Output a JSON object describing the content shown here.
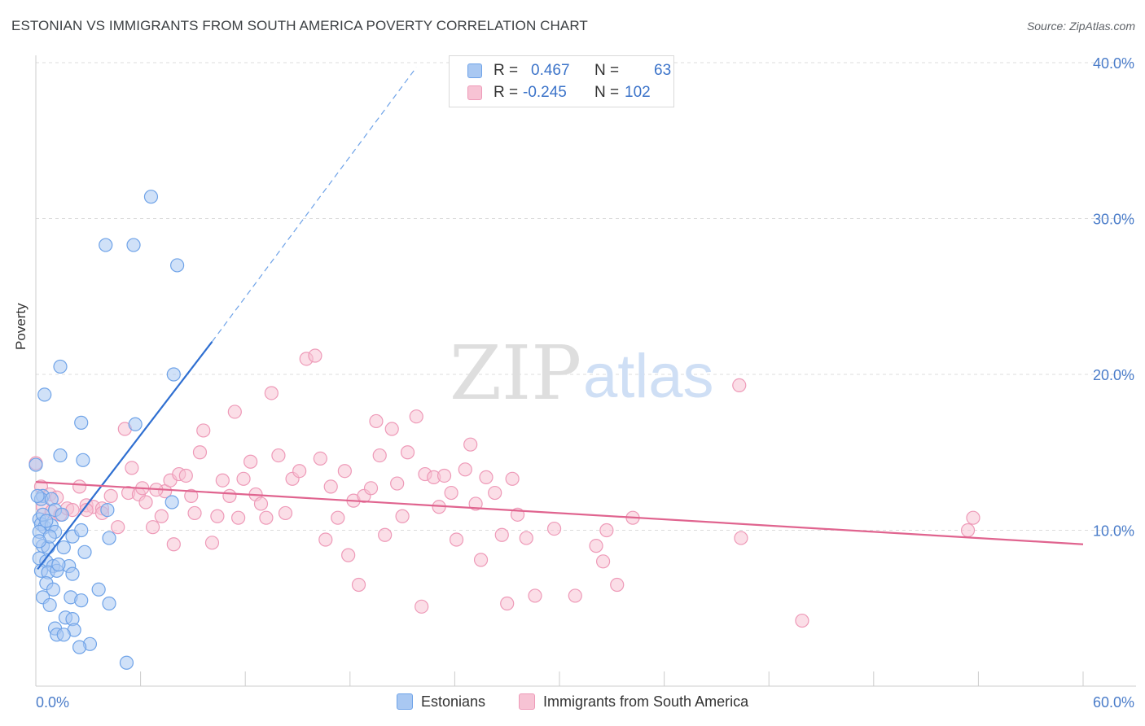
{
  "title": "ESTONIAN VS IMMIGRANTS FROM SOUTH AMERICA POVERTY CORRELATION CHART",
  "source": "Source: ZipAtlas.com",
  "watermark": {
    "zip": "ZIP",
    "atlas": "atlas"
  },
  "legend": {
    "r_label": "R =",
    "n_label": "N =",
    "rows": [
      {
        "r": "0.467",
        "n": "63",
        "color": "#6fa3e8"
      },
      {
        "r": "-0.245",
        "n": "102",
        "color": "#f0a0bc"
      }
    ]
  },
  "bottom_legend": [
    "Estonians",
    "Immigrants from South America"
  ],
  "colors": {
    "blue_fill": "#a9c8f2",
    "blue_stroke": "#6fa3e8",
    "blue_line": "#2f6fd1",
    "pink_fill": "#f7c3d4",
    "pink_stroke": "#ee9ab8",
    "pink_line": "#e0648f",
    "tick_label": "#4a7cc9",
    "grid": "#dcdcdc"
  },
  "chart_data": {
    "type": "scatter",
    "title": "ESTONIAN VS IMMIGRANTS FROM SOUTH AMERICA POVERTY CORRELATION CHART",
    "xlabel": "",
    "ylabel": "Poverty",
    "xlim": [
      0,
      60
    ],
    "ylim": [
      0,
      40
    ],
    "x_tick_labels": [
      "0.0%",
      "60.0%"
    ],
    "y_ticks": [
      10,
      20,
      30,
      40
    ],
    "y_tick_labels": [
      "10.0%",
      "20.0%",
      "30.0%",
      "40.0%"
    ],
    "grid": true,
    "legend_position": "top-center",
    "series": [
      {
        "name": "Estonians",
        "r": 0.467,
        "n": 63,
        "trend": {
          "x0": 0.1,
          "y0": 7.5,
          "x1": 10.1,
          "y1": 22.1,
          "dashed_to_x": 21.8,
          "dashed_to_y": 39.7
        },
        "points": [
          [
            6.6,
            31.4
          ],
          [
            4.0,
            28.3
          ],
          [
            5.6,
            28.3
          ],
          [
            8.1,
            27.0
          ],
          [
            1.4,
            20.5
          ],
          [
            7.9,
            20.0
          ],
          [
            0.5,
            18.7
          ],
          [
            2.6,
            16.9
          ],
          [
            5.7,
            16.8
          ],
          [
            1.4,
            14.8
          ],
          [
            2.7,
            14.5
          ],
          [
            0.0,
            14.2
          ],
          [
            0.4,
            12.2
          ],
          [
            0.3,
            12.0
          ],
          [
            0.9,
            12.0
          ],
          [
            1.1,
            11.3
          ],
          [
            1.5,
            11.0
          ],
          [
            4.1,
            11.3
          ],
          [
            7.8,
            11.8
          ],
          [
            0.2,
            10.7
          ],
          [
            0.3,
            10.4
          ],
          [
            0.5,
            10.2
          ],
          [
            0.9,
            10.3
          ],
          [
            0.2,
            9.9
          ],
          [
            1.1,
            9.9
          ],
          [
            2.1,
            9.6
          ],
          [
            2.6,
            10.0
          ],
          [
            4.2,
            9.5
          ],
          [
            0.4,
            9.0
          ],
          [
            0.7,
            8.9
          ],
          [
            1.6,
            8.9
          ],
          [
            2.8,
            8.6
          ],
          [
            0.2,
            8.2
          ],
          [
            0.6,
            8.0
          ],
          [
            1.0,
            7.7
          ],
          [
            1.9,
            7.7
          ],
          [
            0.3,
            7.4
          ],
          [
            0.7,
            7.3
          ],
          [
            1.2,
            7.4
          ],
          [
            2.1,
            7.2
          ],
          [
            0.6,
            6.6
          ],
          [
            1.0,
            6.2
          ],
          [
            3.6,
            6.2
          ],
          [
            0.4,
            5.7
          ],
          [
            0.8,
            5.2
          ],
          [
            2.0,
            5.7
          ],
          [
            2.6,
            5.5
          ],
          [
            4.2,
            5.3
          ],
          [
            1.7,
            4.4
          ],
          [
            2.1,
            4.3
          ],
          [
            1.1,
            3.7
          ],
          [
            2.2,
            3.6
          ],
          [
            1.2,
            3.3
          ],
          [
            1.6,
            3.3
          ],
          [
            3.1,
            2.7
          ],
          [
            2.5,
            2.5
          ],
          [
            5.2,
            1.5
          ],
          [
            0.1,
            12.2
          ],
          [
            0.4,
            11.0
          ],
          [
            0.8,
            9.6
          ],
          [
            1.3,
            7.8
          ],
          [
            0.2,
            9.3
          ],
          [
            0.6,
            10.6
          ]
        ]
      },
      {
        "name": "Immigrants from South America",
        "r": -0.245,
        "n": 102,
        "trend": {
          "x0": 0,
          "y0": 13.1,
          "x1": 60,
          "y1": 9.1
        },
        "points": [
          [
            0.0,
            14.3
          ],
          [
            0.3,
            12.8
          ],
          [
            0.8,
            12.3
          ],
          [
            1.2,
            12.1
          ],
          [
            0.4,
            11.5
          ],
          [
            0.9,
            11.2
          ],
          [
            1.4,
            11.0
          ],
          [
            1.8,
            11.4
          ],
          [
            2.1,
            11.3
          ],
          [
            2.5,
            12.8
          ],
          [
            2.9,
            11.6
          ],
          [
            3.3,
            11.5
          ],
          [
            3.8,
            11.4
          ],
          [
            3.8,
            11.1
          ],
          [
            4.3,
            12.2
          ],
          [
            4.7,
            10.2
          ],
          [
            5.1,
            16.5
          ],
          [
            5.3,
            12.4
          ],
          [
            5.5,
            14.0
          ],
          [
            5.9,
            12.3
          ],
          [
            6.1,
            12.7
          ],
          [
            6.3,
            11.8
          ],
          [
            6.7,
            10.2
          ],
          [
            7.2,
            10.9
          ],
          [
            7.4,
            12.5
          ],
          [
            7.7,
            13.2
          ],
          [
            7.9,
            9.1
          ],
          [
            8.2,
            13.6
          ],
          [
            8.6,
            13.5
          ],
          [
            8.9,
            12.2
          ],
          [
            9.1,
            11.1
          ],
          [
            9.4,
            15.0
          ],
          [
            9.6,
            16.4
          ],
          [
            10.1,
            9.2
          ],
          [
            10.4,
            10.9
          ],
          [
            10.7,
            13.2
          ],
          [
            11.1,
            12.2
          ],
          [
            11.4,
            17.6
          ],
          [
            11.6,
            10.8
          ],
          [
            11.9,
            13.3
          ],
          [
            12.3,
            14.4
          ],
          [
            12.6,
            12.3
          ],
          [
            12.9,
            11.7
          ],
          [
            13.2,
            10.8
          ],
          [
            13.5,
            18.8
          ],
          [
            13.9,
            14.8
          ],
          [
            14.3,
            11.1
          ],
          [
            14.7,
            13.3
          ],
          [
            15.1,
            13.8
          ],
          [
            15.5,
            21.0
          ],
          [
            16.0,
            21.2
          ],
          [
            16.3,
            14.6
          ],
          [
            16.6,
            9.4
          ],
          [
            16.9,
            12.8
          ],
          [
            17.3,
            10.8
          ],
          [
            17.7,
            13.8
          ],
          [
            17.9,
            8.4
          ],
          [
            18.2,
            11.9
          ],
          [
            18.5,
            6.5
          ],
          [
            18.8,
            12.2
          ],
          [
            19.2,
            12.7
          ],
          [
            19.5,
            17.0
          ],
          [
            19.7,
            14.8
          ],
          [
            20.0,
            9.7
          ],
          [
            20.4,
            16.5
          ],
          [
            20.7,
            13.0
          ],
          [
            21.0,
            10.9
          ],
          [
            21.3,
            15.0
          ],
          [
            21.8,
            17.3
          ],
          [
            22.1,
            5.1
          ],
          [
            22.3,
            13.6
          ],
          [
            22.8,
            13.4
          ],
          [
            23.1,
            11.5
          ],
          [
            23.4,
            13.5
          ],
          [
            23.8,
            12.4
          ],
          [
            24.1,
            9.4
          ],
          [
            24.6,
            13.9
          ],
          [
            24.9,
            15.5
          ],
          [
            25.2,
            11.7
          ],
          [
            25.5,
            8.1
          ],
          [
            25.8,
            13.4
          ],
          [
            26.3,
            12.4
          ],
          [
            26.7,
            9.7
          ],
          [
            27.0,
            5.3
          ],
          [
            27.3,
            13.3
          ],
          [
            27.6,
            11.0
          ],
          [
            28.1,
            9.5
          ],
          [
            28.6,
            5.8
          ],
          [
            29.7,
            10.1
          ],
          [
            30.9,
            5.8
          ],
          [
            32.1,
            9.0
          ],
          [
            32.5,
            8.0
          ],
          [
            32.7,
            10.0
          ],
          [
            33.3,
            6.5
          ],
          [
            34.2,
            10.8
          ],
          [
            40.4,
            9.5
          ],
          [
            40.3,
            19.3
          ],
          [
            43.9,
            4.2
          ],
          [
            53.4,
            10.0
          ],
          [
            53.7,
            10.8
          ],
          [
            2.9,
            11.3
          ],
          [
            6.9,
            12.6
          ]
        ]
      }
    ]
  }
}
